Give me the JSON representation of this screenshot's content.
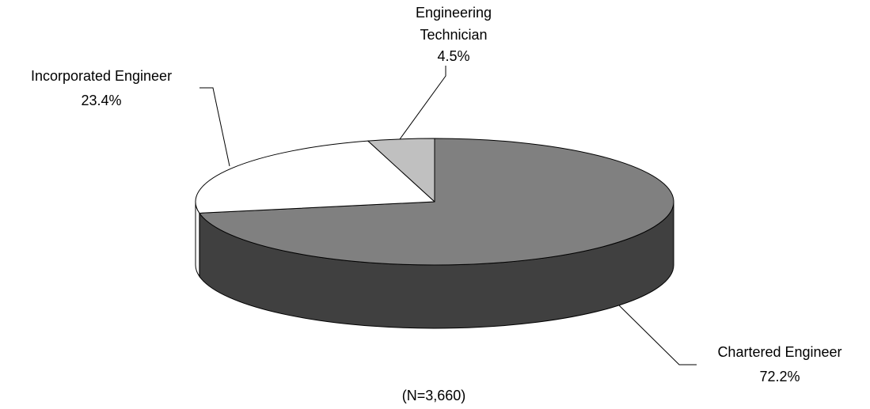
{
  "chart_data": {
    "type": "pie",
    "style": "3d",
    "title": "",
    "note": "(N=3,660)",
    "start_angle_deg": -90,
    "direction": "clockwise",
    "slices": [
      {
        "name": "Chartered Engineer",
        "value": 72.2,
        "label_lines": [
          "Chartered Engineer"
        ],
        "pct_text": "72.2%",
        "color": "#808080",
        "side_color": "#404040"
      },
      {
        "name": "Incorporated Engineer",
        "value": 23.4,
        "label_lines": [
          "Incorporated Engineer"
        ],
        "pct_text": "23.4%",
        "color": "#ffffff",
        "side_color": "#ffffff"
      },
      {
        "name": "Engineering Technician",
        "value": 4.5,
        "label_lines": [
          "Engineering",
          "Technician"
        ],
        "pct_text": "4.5%",
        "color": "#c0c0c0",
        "side_color": "#c0c0c0"
      }
    ]
  }
}
